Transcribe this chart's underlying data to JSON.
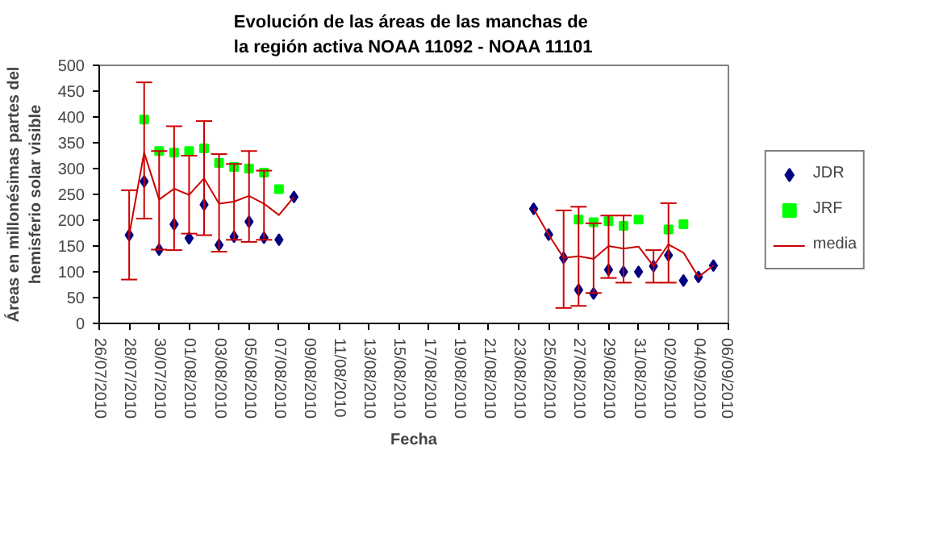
{
  "chart_data": {
    "type": "scatter",
    "title": "Evolución de las áreas de las manchas de\nla región activa NOAA 11092 - NOAA 11101",
    "xlabel": "Fecha",
    "ylabel": "Áreas en millonésimas partes del\nhemisferio solar visible",
    "xlim": [
      "2010-07-26",
      "2010-09-06"
    ],
    "xticks": [
      {
        "value": "2010-07-26",
        "label": "26/07/2010"
      },
      {
        "value": "2010-07-28",
        "label": "28/07/2010"
      },
      {
        "value": "2010-07-30",
        "label": "30/07/2010"
      },
      {
        "value": "2010-08-01",
        "label": "01/08/2010"
      },
      {
        "value": "2010-08-03",
        "label": "03/08/2010"
      },
      {
        "value": "2010-08-05",
        "label": "05/08/2010"
      },
      {
        "value": "2010-08-07",
        "label": "07/08/2010"
      },
      {
        "value": "2010-08-09",
        "label": "09/08/2010"
      },
      {
        "value": "2010-08-11",
        "label": "11/08/2010"
      },
      {
        "value": "2010-08-13",
        "label": "13/08/2010"
      },
      {
        "value": "2010-08-15",
        "label": "15/08/2010"
      },
      {
        "value": "2010-08-17",
        "label": "17/08/2010"
      },
      {
        "value": "2010-08-19",
        "label": "19/08/2010"
      },
      {
        "value": "2010-08-21",
        "label": "21/08/2010"
      },
      {
        "value": "2010-08-23",
        "label": "23/08/2010"
      },
      {
        "value": "2010-08-25",
        "label": "25/08/2010"
      },
      {
        "value": "2010-08-27",
        "label": "27/08/2010"
      },
      {
        "value": "2010-08-29",
        "label": "29/08/2010"
      },
      {
        "value": "2010-08-31",
        "label": "31/08/2010"
      },
      {
        "value": "2010-09-02",
        "label": "02/09/2010"
      },
      {
        "value": "2010-09-04",
        "label": "04/09/2010"
      },
      {
        "value": "2010-09-06",
        "label": "06/09/2010"
      }
    ],
    "ylim": [
      0,
      500
    ],
    "yticks": [
      0,
      50,
      100,
      150,
      200,
      250,
      300,
      350,
      400,
      450,
      500
    ],
    "grid": false,
    "legend": "right",
    "series": [
      {
        "name": "JDR",
        "marker": "diamond",
        "color": "#000080",
        "x": [
          "2010-07-28",
          "2010-07-29",
          "2010-07-30",
          "2010-07-31",
          "2010-08-01",
          "2010-08-02",
          "2010-08-03",
          "2010-08-04",
          "2010-08-05",
          "2010-08-06",
          "2010-08-07",
          "2010-08-08",
          "2010-08-24",
          "2010-08-25",
          "2010-08-26",
          "2010-08-27",
          "2010-08-28",
          "2010-08-29",
          "2010-08-30",
          "2010-08-31",
          "2010-09-01",
          "2010-09-02",
          "2010-09-03",
          "2010-09-04",
          "2010-09-05"
        ],
        "values": [
          171,
          275,
          143,
          192,
          165,
          230,
          152,
          168,
          197,
          166,
          162,
          245,
          222,
          172,
          127,
          65,
          58,
          104,
          100,
          100,
          111,
          132,
          83,
          90,
          112
        ]
      },
      {
        "name": "JRF",
        "marker": "square",
        "color": "#00ff00",
        "x": [
          "2010-07-29",
          "2010-07-30",
          "2010-07-31",
          "2010-08-01",
          "2010-08-02",
          "2010-08-03",
          "2010-08-04",
          "2010-08-05",
          "2010-08-06",
          "2010-08-07",
          "2010-08-27",
          "2010-08-28",
          "2010-08-29",
          "2010-08-30",
          "2010-08-31",
          "2010-09-02",
          "2010-09-03"
        ],
        "values": [
          395,
          334,
          331,
          334,
          339,
          311,
          303,
          300,
          292,
          260,
          201,
          196,
          198,
          189,
          201,
          182,
          192
        ]
      },
      {
        "name": "media",
        "type": "line",
        "marker": "none",
        "line_style": "solid",
        "color": "#cc0000",
        "x": [
          "2010-07-28",
          "2010-07-29",
          "2010-07-30",
          "2010-07-31",
          "2010-08-01",
          "2010-08-02",
          "2010-08-03",
          "2010-08-04",
          "2010-08-05",
          "2010-08-06",
          "2010-08-07",
          "2010-08-08",
          "2010-08-16",
          "2010-08-24",
          "2010-08-25",
          "2010-08-26",
          "2010-08-27",
          "2010-08-28",
          "2010-08-29",
          "2010-08-30",
          "2010-08-31",
          "2010-09-01",
          "2010-09-02",
          "2010-09-03",
          "2010-09-04",
          "2010-09-05"
        ],
        "values": [
          171,
          331,
          240,
          261,
          249,
          281,
          232,
          236,
          247,
          232,
          210,
          245,
          null,
          222,
          172,
          127,
          130,
          125,
          150,
          145,
          149,
          111,
          153,
          137,
          90,
          112
        ],
        "errors": [
          [
            85,
            258
          ],
          [
            203,
            467
          ],
          [
            143,
            334
          ],
          [
            142,
            382
          ],
          [
            174,
            325
          ],
          [
            171,
            392
          ],
          [
            139,
            328
          ],
          [
            162,
            309
          ],
          [
            158,
            334
          ],
          [
            162,
            296
          ],
          null,
          null,
          null,
          null,
          null,
          [
            30,
            219
          ],
          [
            34,
            226
          ],
          [
            59,
            194
          ],
          [
            88,
            209
          ],
          [
            79,
            209
          ],
          null,
          [
            79,
            142
          ],
          [
            79,
            233
          ],
          null,
          null,
          null
        ]
      }
    ]
  }
}
